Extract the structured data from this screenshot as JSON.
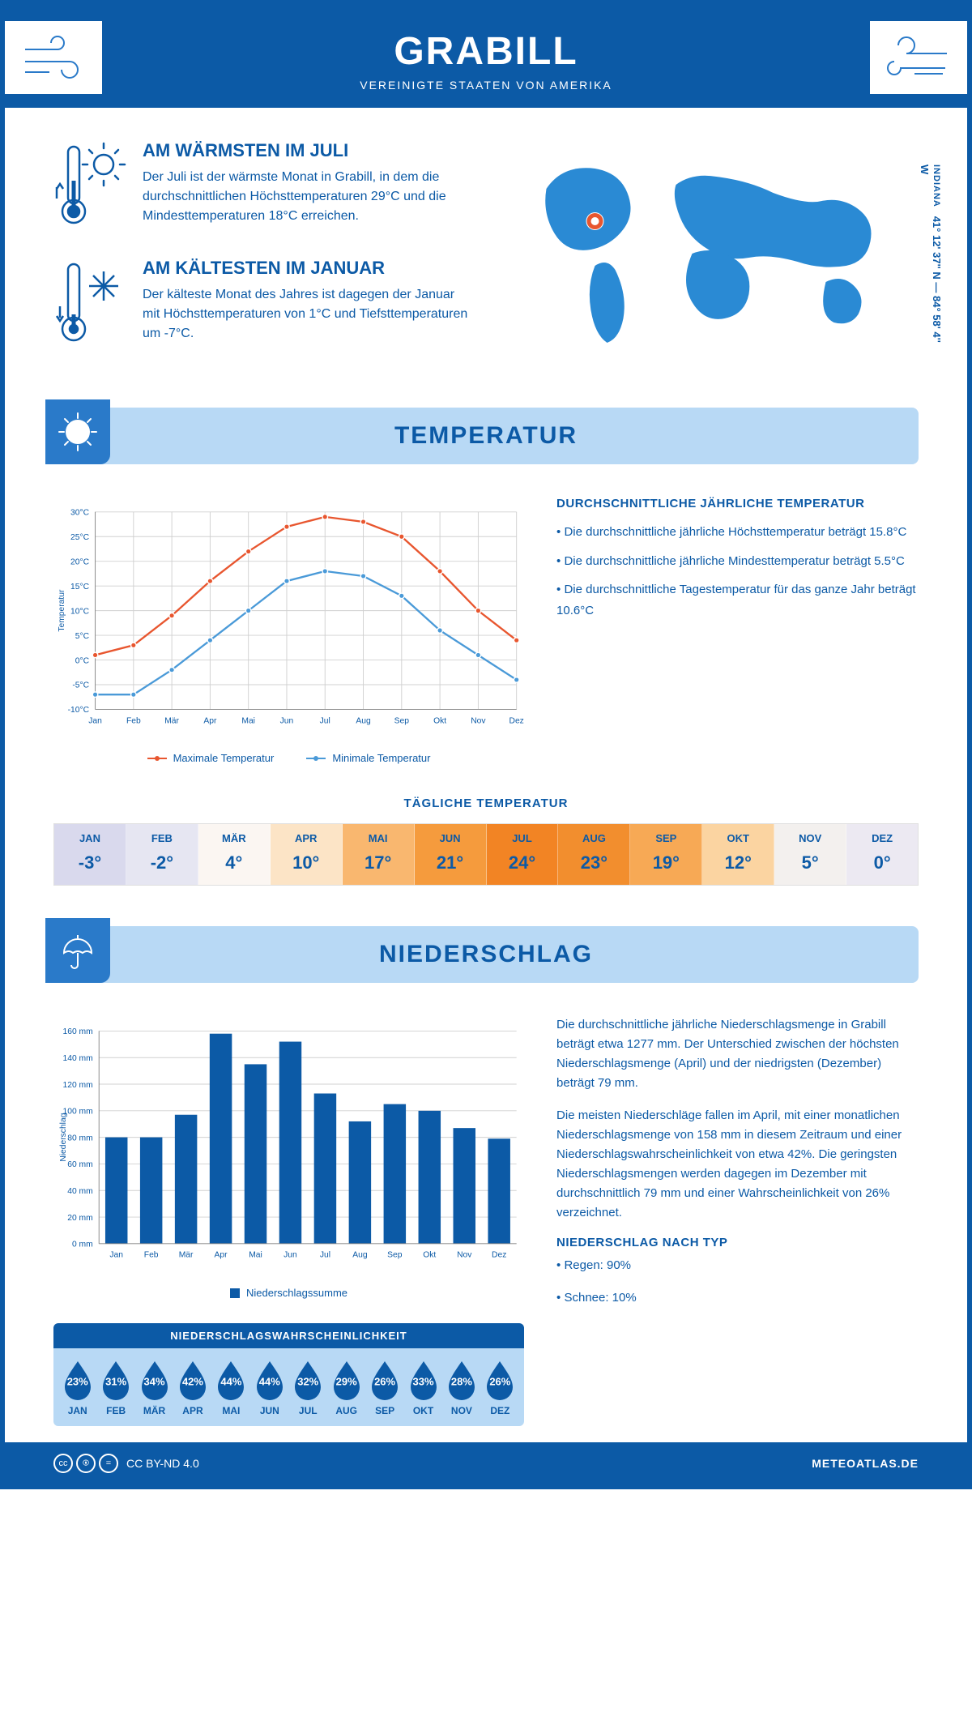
{
  "header": {
    "title": "GRABILL",
    "subtitle": "VEREINIGTE STAATEN VON AMERIKA"
  },
  "coords": {
    "state": "INDIANA",
    "lat": "41° 12' 37'' N",
    "lon": "84° 58' 4'' W"
  },
  "warmest": {
    "title": "AM WÄRMSTEN IM JULI",
    "text": "Der Juli ist der wärmste Monat in Grabill, in dem die durchschnittlichen Höchsttemperaturen 29°C und die Mindesttemperaturen 18°C erreichen."
  },
  "coldest": {
    "title": "AM KÄLTESTEN IM JANUAR",
    "text": "Der kälteste Monat des Jahres ist dagegen der Januar mit Höchsttemperaturen von 1°C und Tiefsttemperaturen um -7°C."
  },
  "temp_section": {
    "title": "TEMPERATUR",
    "legend_max": "Maximale Temperatur",
    "legend_min": "Minimale Temperatur",
    "desc_title": "DURCHSCHNITTLICHE JÄHRLICHE TEMPERATUR",
    "desc1": "• Die durchschnittliche jährliche Höchsttemperatur beträgt 15.8°C",
    "desc2": "• Die durchschnittliche jährliche Mindesttemperatur beträgt 5.5°C",
    "desc3": "• Die durchschnittliche Tagestemperatur für das ganze Jahr beträgt 10.6°C",
    "chart": {
      "type": "line",
      "ylabel": "Temperatur",
      "ylim": [
        -10,
        30
      ],
      "ytick_step": 5,
      "categories": [
        "Jan",
        "Feb",
        "Mär",
        "Apr",
        "Mai",
        "Jun",
        "Jul",
        "Aug",
        "Sep",
        "Okt",
        "Nov",
        "Dez"
      ],
      "max_values": [
        1,
        3,
        9,
        16,
        22,
        27,
        29,
        28,
        25,
        18,
        10,
        4
      ],
      "min_values": [
        -7,
        -7,
        -2,
        4,
        10,
        16,
        18,
        17,
        13,
        6,
        1,
        -4
      ],
      "max_color": "#e8562f",
      "min_color": "#4a9ad8",
      "grid_color": "#d0d0d0",
      "text_color": "#0c5aa6"
    }
  },
  "daily_temp": {
    "title": "TÄGLICHE TEMPERATUR",
    "months": [
      "JAN",
      "FEB",
      "MÄR",
      "APR",
      "MAI",
      "JUN",
      "JUL",
      "AUG",
      "SEP",
      "OKT",
      "NOV",
      "DEZ"
    ],
    "values": [
      "-3°",
      "-2°",
      "4°",
      "10°",
      "17°",
      "21°",
      "24°",
      "23°",
      "19°",
      "12°",
      "5°",
      "0°"
    ],
    "colors": [
      "#d9d9ed",
      "#e6e6f2",
      "#fbf6f2",
      "#fce4c6",
      "#f9b76f",
      "#f59b3d",
      "#f28424",
      "#f28e2e",
      "#f7a955",
      "#fbd4a1",
      "#f3f0ee",
      "#ece9f2"
    ]
  },
  "precip_section": {
    "title": "NIEDERSCHLAG",
    "chart": {
      "type": "bar",
      "ylabel": "Niederschlag",
      "ylim": [
        0,
        160
      ],
      "ytick_step": 20,
      "categories": [
        "Jan",
        "Feb",
        "Mär",
        "Apr",
        "Mai",
        "Jun",
        "Jul",
        "Aug",
        "Sep",
        "Okt",
        "Nov",
        "Dez"
      ],
      "values": [
        80,
        80,
        97,
        158,
        135,
        152,
        113,
        92,
        105,
        100,
        87,
        79
      ],
      "bar_color": "#0c5aa6",
      "grid_color": "#d0d0d0",
      "legend": "Niederschlagssumme"
    },
    "text1": "Die durchschnittliche jährliche Niederschlagsmenge in Grabill beträgt etwa 1277 mm. Der Unterschied zwischen der höchsten Niederschlagsmenge (April) und der niedrigsten (Dezember) beträgt 79 mm.",
    "text2": "Die meisten Niederschläge fallen im April, mit einer monatlichen Niederschlagsmenge von 158 mm in diesem Zeitraum und einer Niederschlagswahrscheinlichkeit von etwa 42%. Die geringsten Niederschlagsmengen werden dagegen im Dezember mit durchschnittlich 79 mm und einer Wahrscheinlichkeit von 26% verzeichnet.",
    "type_title": "NIEDERSCHLAG NACH TYP",
    "type1": "• Regen: 90%",
    "type2": "• Schnee: 10%"
  },
  "probability": {
    "title": "NIEDERSCHLAGSWAHRSCHEINLICHKEIT",
    "months": [
      "JAN",
      "FEB",
      "MÄR",
      "APR",
      "MAI",
      "JUN",
      "JUL",
      "AUG",
      "SEP",
      "OKT",
      "NOV",
      "DEZ"
    ],
    "values": [
      "23%",
      "31%",
      "34%",
      "42%",
      "44%",
      "44%",
      "32%",
      "29%",
      "26%",
      "33%",
      "28%",
      "26%"
    ],
    "drop_fill": "#0c5aa6",
    "drop_empty_fill": "#b8d9f5"
  },
  "footer": {
    "license": "CC BY-ND 4.0",
    "brand": "METEOATLAS.DE"
  }
}
